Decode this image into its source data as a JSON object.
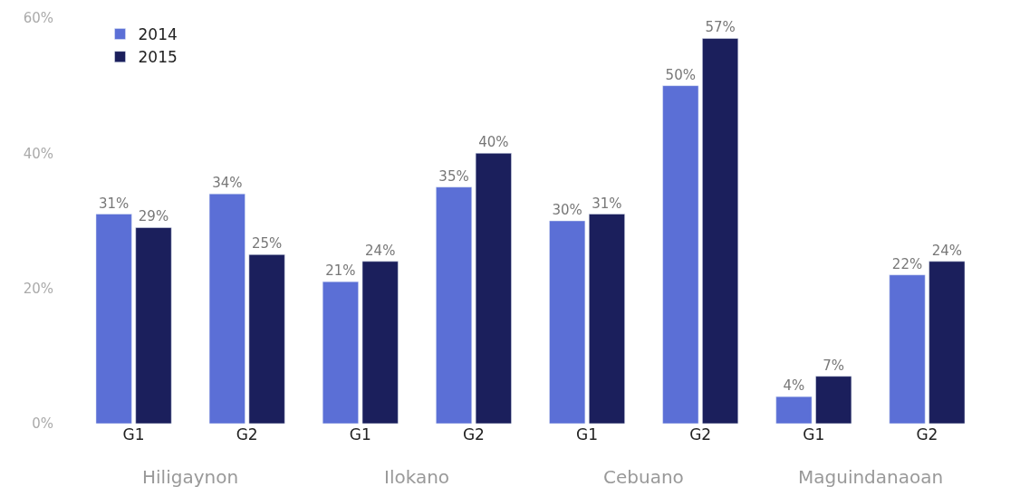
{
  "chart_data": {
    "type": "bar",
    "categories": [
      "G1",
      "G2",
      "G1",
      "G2",
      "G1",
      "G2",
      "G1",
      "G2"
    ],
    "series": [
      {
        "name": "2014",
        "color": "#5b6fd6",
        "values": [
          31,
          34,
          21,
          35,
          30,
          50,
          4,
          22
        ],
        "value_labels": [
          "31%",
          "34%",
          "21%",
          "35%",
          "30%",
          "50%",
          "4%",
          "22%"
        ]
      },
      {
        "name": "2015",
        "color": "#1b1f5c",
        "values": [
          29,
          25,
          24,
          40,
          31,
          57,
          7,
          24
        ],
        "value_labels": [
          "29%",
          "25%",
          "24%",
          "40%",
          "31%",
          "57%",
          "7%",
          "24%"
        ]
      }
    ],
    "annotations": [
      "Hiligaynon",
      "Ilokano",
      "Cebuano",
      "Maguindanaoan"
    ],
    "ylim": [
      0,
      60
    ],
    "yticks": [
      {
        "value": 0,
        "label": "0%"
      },
      {
        "value": 20,
        "label": "20%"
      },
      {
        "value": 40,
        "label": "40%"
      },
      {
        "value": 60,
        "label": "60%"
      }
    ],
    "legend": "top left"
  }
}
